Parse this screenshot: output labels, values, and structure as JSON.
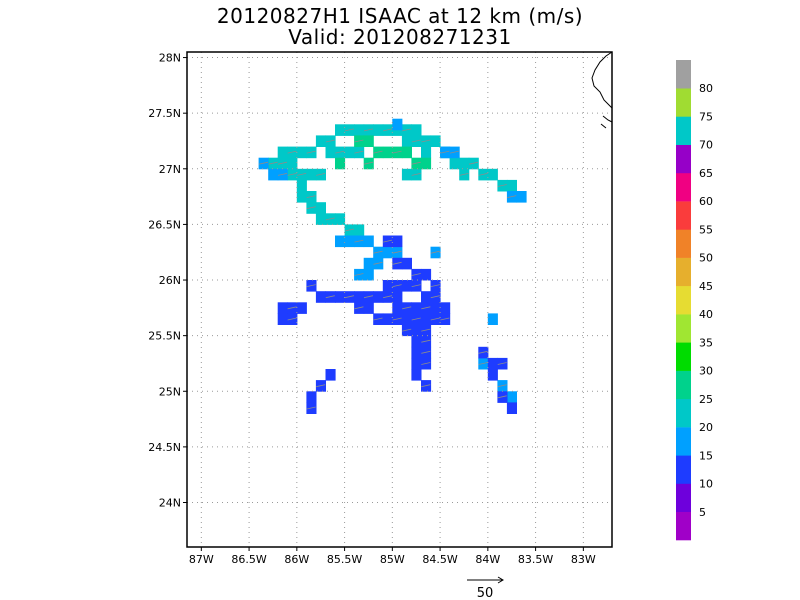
{
  "title": {
    "line1": "20120827H1 ISAAC at 12 km (m/s)",
    "line2": "Valid: 201208271231"
  },
  "map": {
    "lon_range": [
      -87.15,
      -82.7
    ],
    "lat_range": [
      23.6,
      28.05
    ],
    "lat_ticks": [
      {
        "v": 28,
        "label": "28N"
      },
      {
        "v": 27.5,
        "label": "27.5N"
      },
      {
        "v": 27,
        "label": "27N"
      },
      {
        "v": 26.5,
        "label": "26.5N"
      },
      {
        "v": 26,
        "label": "26N"
      },
      {
        "v": 25.5,
        "label": "25.5N"
      },
      {
        "v": 25,
        "label": "25N"
      },
      {
        "v": 24.5,
        "label": "24.5N"
      },
      {
        "v": 24,
        "label": "24N"
      }
    ],
    "lon_ticks": [
      {
        "v": -87,
        "label": "87W"
      },
      {
        "v": -86.5,
        "label": "86.5W"
      },
      {
        "v": -86,
        "label": "86W"
      },
      {
        "v": -85.5,
        "label": "85.5W"
      },
      {
        "v": -85,
        "label": "85W"
      },
      {
        "v": -84.5,
        "label": "84.5W"
      },
      {
        "v": -84,
        "label": "84W"
      },
      {
        "v": -83.5,
        "label": "83.5W"
      },
      {
        "v": -83,
        "label": "83W"
      }
    ],
    "grid": "dotted",
    "cell_size_deg": 0.1
  },
  "colorbar": {
    "labels": [
      "5",
      "10",
      "15",
      "20",
      "25",
      "30",
      "35",
      "40",
      "45",
      "50",
      "55",
      "60",
      "65",
      "70",
      "75",
      "80"
    ],
    "colors": [
      "#a000c8",
      "#6e00dc",
      "#1e3cff",
      "#00a0ff",
      "#00c8c8",
      "#00d28c",
      "#00dc00",
      "#a0e632",
      "#e6dc32",
      "#e6af2d",
      "#f08228",
      "#fa3c3c",
      "#f00082",
      "#9600c8",
      "#00c8c8",
      "#a0dc32",
      "#a0a0a0"
    ]
  },
  "reference_vector": {
    "label": "50"
  },
  "chart_data": {
    "type": "heatmap",
    "variable": "Wind speed (m/s)",
    "regions": [
      {
        "name": "north-band-cyan",
        "speed_ms": 20,
        "cells": [
          [
            -86.3,
            27.0
          ],
          [
            -86.2,
            27.1
          ],
          [
            -86.1,
            27.1
          ],
          [
            -86.0,
            27.1
          ],
          [
            -85.9,
            27.1
          ],
          [
            -85.8,
            27.2
          ],
          [
            -85.7,
            27.2
          ],
          [
            -85.6,
            27.3
          ],
          [
            -85.5,
            27.3
          ],
          [
            -85.4,
            27.3
          ],
          [
            -85.3,
            27.3
          ],
          [
            -85.2,
            27.3
          ],
          [
            -85.1,
            27.3
          ],
          [
            -85.0,
            27.3
          ],
          [
            -84.9,
            27.3
          ],
          [
            -84.8,
            27.3
          ],
          [
            -84.7,
            27.2
          ],
          [
            -84.6,
            27.2
          ],
          [
            -84.5,
            27.1
          ],
          [
            -84.4,
            27.0
          ],
          [
            -84.3,
            26.9
          ],
          [
            -85.7,
            27.1
          ],
          [
            -85.6,
            27.1
          ],
          [
            -85.5,
            27.1
          ],
          [
            -85.4,
            27.1
          ],
          [
            -84.9,
            27.2
          ],
          [
            -84.8,
            27.2
          ],
          [
            -84.7,
            27.1
          ],
          [
            -86.2,
            27.0
          ],
          [
            -86.1,
            27.0
          ],
          [
            -86.0,
            26.9
          ],
          [
            -85.9,
            26.9
          ],
          [
            -85.8,
            26.9
          ],
          [
            -84.9,
            26.9
          ],
          [
            -84.8,
            26.9
          ],
          [
            -86.0,
            26.8
          ],
          [
            -85.9,
            26.7
          ],
          [
            -85.8,
            26.6
          ],
          [
            -85.7,
            26.5
          ],
          [
            -85.6,
            26.5
          ],
          [
            -85.5,
            26.4
          ],
          [
            -85.4,
            26.4
          ],
          [
            -86.1,
            26.9
          ],
          [
            -86.0,
            26.7
          ],
          [
            -85.9,
            26.6
          ],
          [
            -85.8,
            26.5
          ],
          [
            -84.1,
            26.9
          ],
          [
            -84.0,
            26.9
          ],
          [
            -83.9,
            26.8
          ],
          [
            -83.8,
            26.8
          ],
          [
            -84.2,
            27.0
          ],
          [
            -84.3,
            27.0
          ]
        ]
      },
      {
        "name": "north-band-teal",
        "speed_ms": 25,
        "cells": [
          [
            -85.2,
            27.1
          ],
          [
            -85.1,
            27.1
          ],
          [
            -85.0,
            27.1
          ],
          [
            -84.9,
            27.1
          ],
          [
            -84.8,
            27.0
          ],
          [
            -84.7,
            27.0
          ],
          [
            -85.3,
            27.0
          ],
          [
            -85.6,
            27.0
          ],
          [
            -85.4,
            27.2
          ],
          [
            -85.3,
            27.2
          ]
        ]
      },
      {
        "name": "north-band-blue",
        "speed_ms": 15,
        "cells": [
          [
            -86.2,
            26.9
          ],
          [
            -86.3,
            26.9
          ],
          [
            -86.4,
            27.0
          ],
          [
            -84.5,
            27.1
          ],
          [
            -84.4,
            27.1
          ],
          [
            -83.7,
            26.7
          ],
          [
            -83.8,
            26.7
          ],
          [
            -85.5,
            26.3
          ],
          [
            -85.4,
            26.3
          ],
          [
            -85.3,
            26.3
          ],
          [
            -85.2,
            26.2
          ],
          [
            -85.1,
            26.2
          ],
          [
            -85.0,
            26.2
          ],
          [
            -85.3,
            26.1
          ],
          [
            -85.2,
            26.1
          ],
          [
            -85.6,
            26.3
          ],
          [
            -85.4,
            26.0
          ],
          [
            -85.3,
            26.0
          ],
          [
            -84.6,
            26.2
          ],
          [
            -84.0,
            25.6
          ],
          [
            -83.9,
            25.0
          ],
          [
            -83.8,
            24.9
          ],
          [
            -84.1,
            25.2
          ],
          [
            -85.0,
            27.35
          ]
        ]
      },
      {
        "name": "south-core-purple",
        "speed_ms": 10,
        "cells": [
          [
            -85.1,
            26.3
          ],
          [
            -85.0,
            26.3
          ],
          [
            -85.0,
            26.1
          ],
          [
            -84.9,
            26.1
          ],
          [
            -84.8,
            26.0
          ],
          [
            -84.7,
            26.0
          ],
          [
            -84.6,
            25.9
          ],
          [
            -85.1,
            25.9
          ],
          [
            -85.0,
            25.9
          ],
          [
            -84.9,
            25.9
          ],
          [
            -84.8,
            25.9
          ],
          [
            -84.7,
            25.8
          ],
          [
            -84.6,
            25.8
          ],
          [
            -84.5,
            25.7
          ],
          [
            -84.5,
            25.6
          ],
          [
            -85.0,
            25.7
          ],
          [
            -84.9,
            25.7
          ],
          [
            -84.8,
            25.7
          ],
          [
            -84.7,
            25.7
          ],
          [
            -84.6,
            25.7
          ],
          [
            -85.2,
            25.6
          ],
          [
            -85.1,
            25.6
          ],
          [
            -85.0,
            25.6
          ],
          [
            -84.9,
            25.6
          ],
          [
            -84.8,
            25.6
          ],
          [
            -84.7,
            25.6
          ],
          [
            -84.6,
            25.6
          ],
          [
            -85.8,
            25.8
          ],
          [
            -85.7,
            25.8
          ],
          [
            -85.6,
            25.8
          ],
          [
            -85.5,
            25.8
          ],
          [
            -85.4,
            25.8
          ],
          [
            -85.3,
            25.8
          ],
          [
            -85.2,
            25.8
          ],
          [
            -85.1,
            25.8
          ],
          [
            -85.0,
            25.8
          ],
          [
            -85.9,
            25.9
          ],
          [
            -85.3,
            25.7
          ],
          [
            -85.4,
            25.7
          ],
          [
            -86.2,
            25.7
          ],
          [
            -86.1,
            25.7
          ],
          [
            -86.0,
            25.7
          ],
          [
            -86.1,
            25.6
          ],
          [
            -86.2,
            25.6
          ],
          [
            -84.9,
            25.5
          ],
          [
            -84.8,
            25.5
          ],
          [
            -84.7,
            25.5
          ],
          [
            -84.8,
            25.4
          ],
          [
            -84.7,
            25.4
          ],
          [
            -84.8,
            25.3
          ],
          [
            -84.7,
            25.3
          ],
          [
            -84.8,
            25.2
          ],
          [
            -84.7,
            25.2
          ],
          [
            -84.8,
            25.1
          ],
          [
            -84.7,
            25.0
          ],
          [
            -84.0,
            25.1
          ],
          [
            -83.9,
            25.2
          ],
          [
            -84.0,
            25.2
          ],
          [
            -83.9,
            24.9
          ],
          [
            -83.8,
            24.8
          ],
          [
            -84.1,
            25.3
          ],
          [
            -85.7,
            25.1
          ],
          [
            -85.8,
            25.0
          ],
          [
            -85.9,
            24.9
          ],
          [
            -85.9,
            24.8
          ]
        ]
      }
    ]
  }
}
